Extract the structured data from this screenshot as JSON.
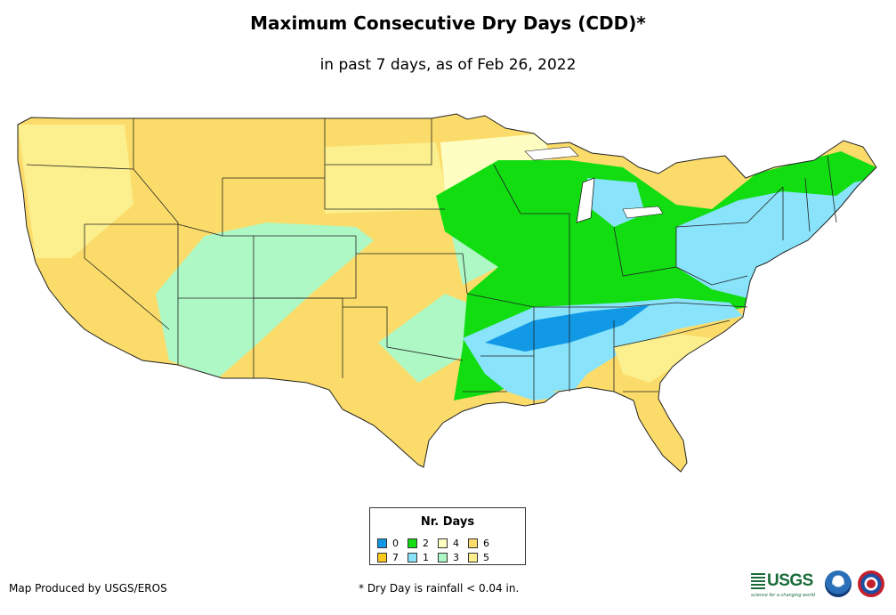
{
  "header": {
    "title": "Maximum Consecutive Dry Days (CDD)*",
    "subtitle": "in past 7 days, as of Feb 26, 2022"
  },
  "legend": {
    "title": "Nr. Days",
    "items": [
      {
        "label": "0",
        "color": "#1199e6"
      },
      {
        "label": "2",
        "color": "#11dd11"
      },
      {
        "label": "4",
        "color": "#fefdc2"
      },
      {
        "label": "6",
        "color": "#fbdc6a"
      },
      {
        "label": "7",
        "color": "#fbca1d"
      },
      {
        "label": "1",
        "color": "#88e3fb"
      },
      {
        "label": "3",
        "color": "#aef8c5"
      },
      {
        "label": "5",
        "color": "#fbef8e"
      }
    ]
  },
  "footer": {
    "credit": "Map Produced by USGS/EROS",
    "note": "* Dry Day is rainfall < 0.04 in."
  },
  "logos": {
    "usgs": "USGS",
    "usgs_tagline": "science for a changing world",
    "noaa": "noaa",
    "nws_icon": "nws-logo-icon"
  },
  "colors": {
    "background": "#ffffff",
    "boundary": "#222222"
  }
}
